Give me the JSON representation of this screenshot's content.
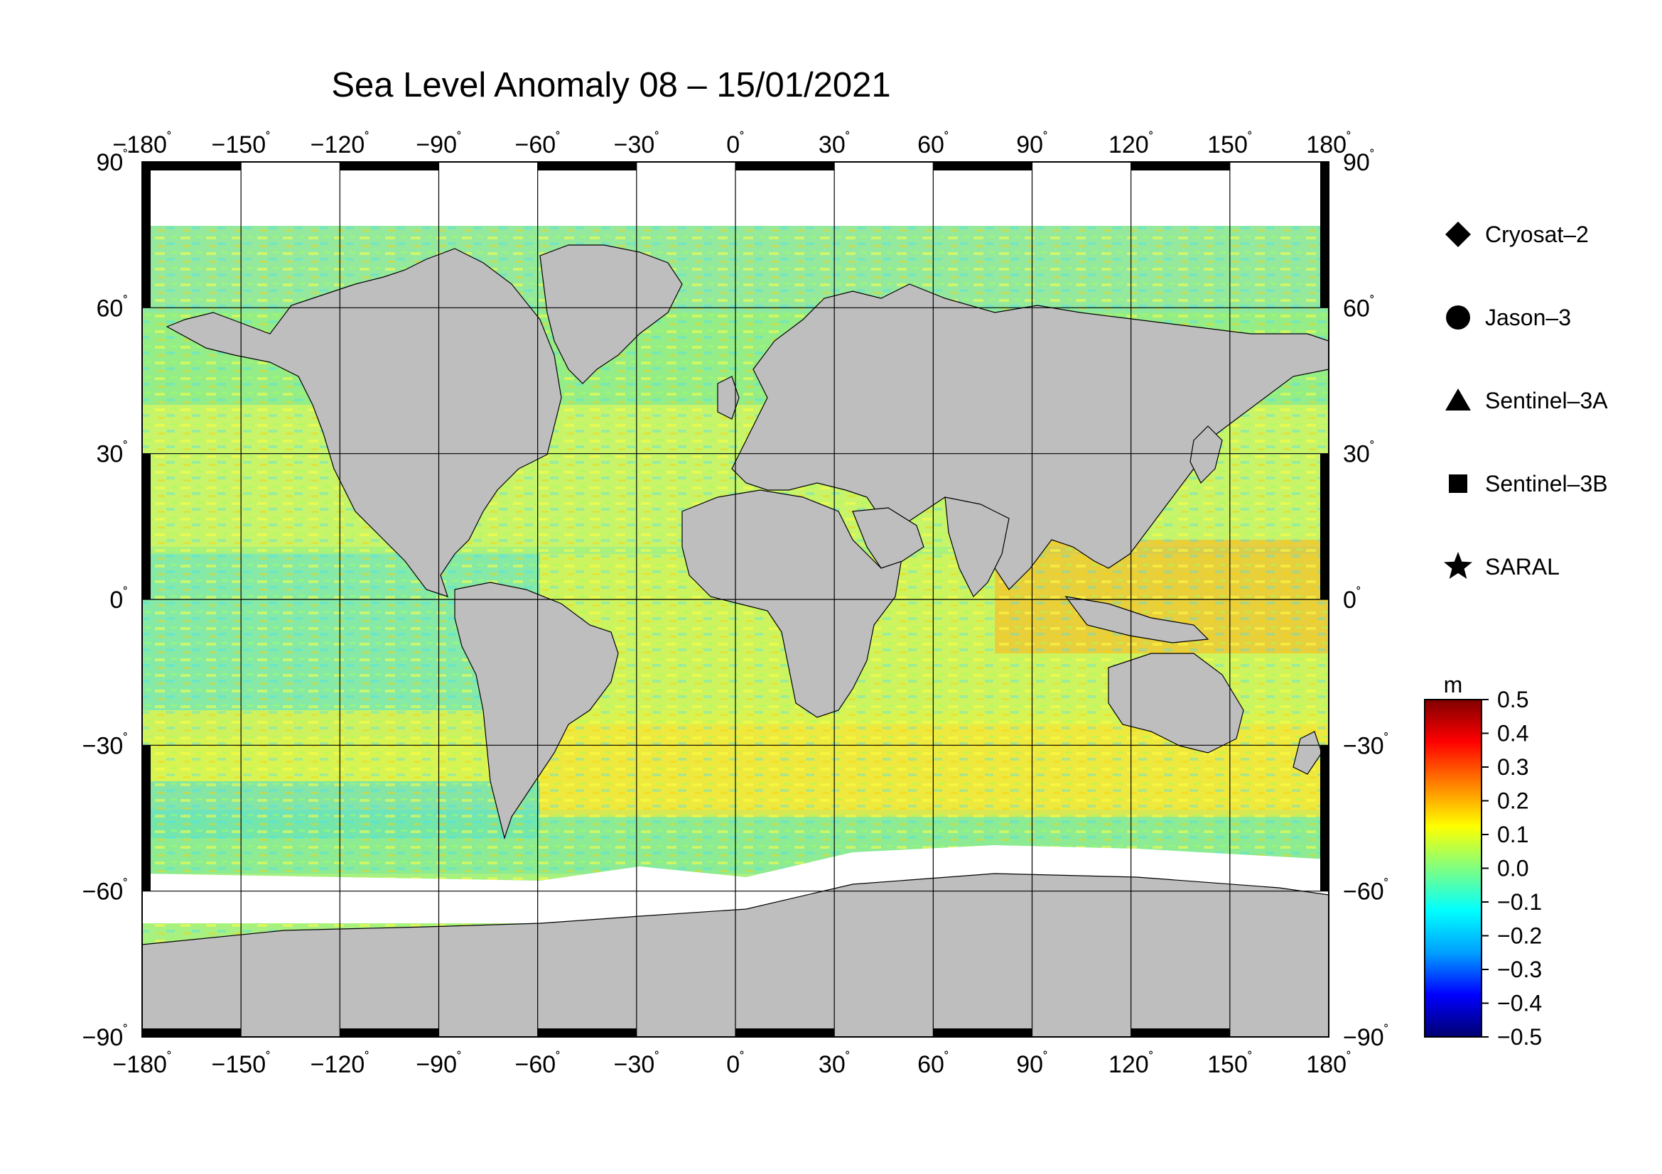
{
  "title": "Sea Level Anomaly 08 – 15/01/2021",
  "map": {
    "lon_range": [
      -180,
      180
    ],
    "lat_range": [
      -90,
      90
    ],
    "lon_ticks": [
      {
        "value": -180,
        "label": "−180"
      },
      {
        "value": -150,
        "label": "−150"
      },
      {
        "value": -120,
        "label": "−120"
      },
      {
        "value": -90,
        "label": "−90"
      },
      {
        "value": -60,
        "label": "−60"
      },
      {
        "value": -30,
        "label": "−30"
      },
      {
        "value": 0,
        "label": "0"
      },
      {
        "value": 30,
        "label": "30"
      },
      {
        "value": 60,
        "label": "60"
      },
      {
        "value": 90,
        "label": "90"
      },
      {
        "value": 120,
        "label": "120"
      },
      {
        "value": 150,
        "label": "150"
      },
      {
        "value": 180,
        "label": "180"
      }
    ],
    "lat_ticks": [
      {
        "value": 90,
        "label": "90"
      },
      {
        "value": 60,
        "label": "60"
      },
      {
        "value": 30,
        "label": "30"
      },
      {
        "value": 0,
        "label": "0"
      },
      {
        "value": -30,
        "label": "−30"
      },
      {
        "value": -60,
        "label": "−60"
      },
      {
        "value": -90,
        "label": "−90"
      }
    ],
    "degree_symbol": "˚",
    "colors": {
      "land": "#bebebe",
      "ice": "#ffffff",
      "grid": "#000000"
    }
  },
  "legend": {
    "items": [
      {
        "label": "Cryosat–2",
        "icon": "diamond-icon"
      },
      {
        "label": "Jason–3",
        "icon": "circle-icon"
      },
      {
        "label": "Sentinel–3A",
        "icon": "triangle-icon"
      },
      {
        "label": "Sentinel–3B",
        "icon": "square-icon"
      },
      {
        "label": "SARAL",
        "icon": "star-icon"
      }
    ]
  },
  "colorbar": {
    "unit": "m",
    "min": -0.5,
    "max": 0.5,
    "tick_labels": [
      "0.5",
      "0.4",
      "0.3",
      "0.2",
      "0.1",
      "0.0",
      "−0.1",
      "−0.2",
      "−0.3",
      "−0.4",
      "−0.5"
    ],
    "colors": [
      "#000070",
      "#0000ff",
      "#00a0ff",
      "#00ffff",
      "#80ff80",
      "#ffff00",
      "#ff8000",
      "#ff0000",
      "#800000"
    ]
  }
}
